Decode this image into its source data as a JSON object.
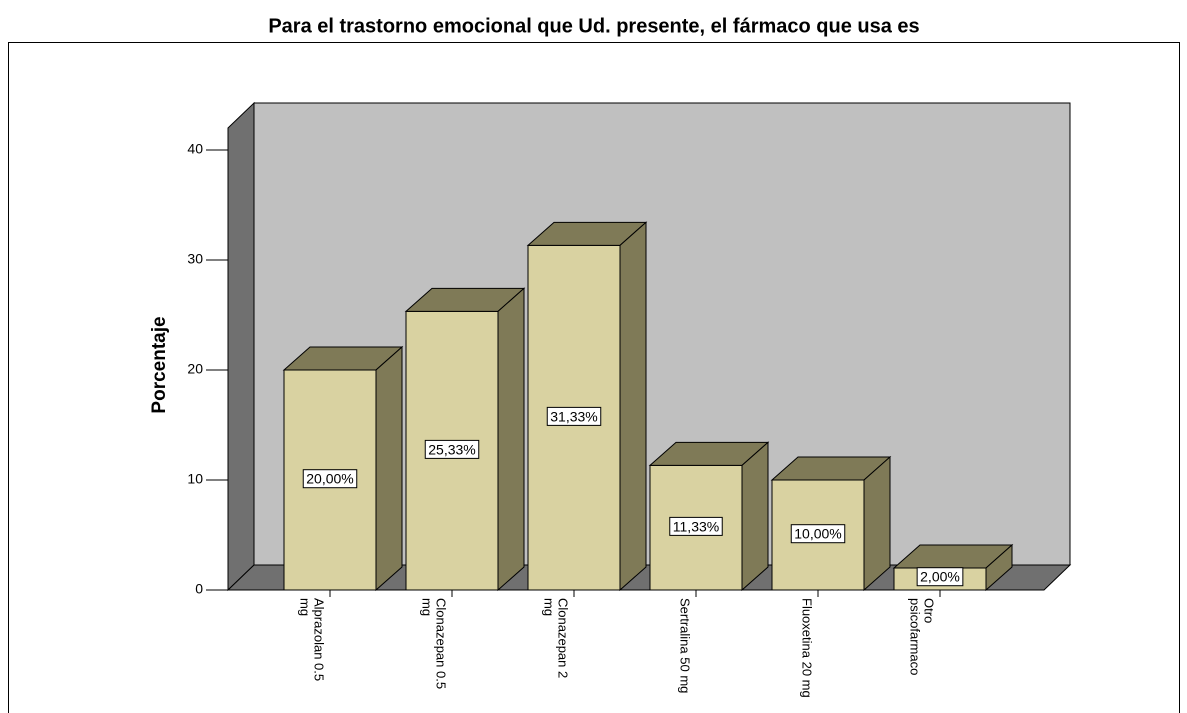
{
  "chart_data": {
    "type": "bar3d",
    "title": "Para el trastorno emocional que Ud. presente, el fármaco que usa es",
    "ylabel": "Porcentaje",
    "categories": [
      [
        "Alprazolan 0.5",
        "mg"
      ],
      [
        "Clonazepan 0.5",
        "mg"
      ],
      [
        "Clonazepan 2",
        "mg"
      ],
      [
        "Sertralina 50 mg"
      ],
      [
        "Fluoxetina 20 mg"
      ],
      [
        "Otro",
        "psicofarmaco"
      ]
    ],
    "values": [
      20.0,
      25.33,
      31.33,
      11.33,
      10.0,
      2.0
    ],
    "value_labels": [
      "20,00%",
      "25,33%",
      "31,33%",
      "11,33%",
      "10,00%",
      "2,00%"
    ],
    "color": "#d9d2a1",
    "ylim": [
      0,
      40
    ],
    "yticks": [
      0,
      10,
      20,
      30,
      40
    ]
  }
}
